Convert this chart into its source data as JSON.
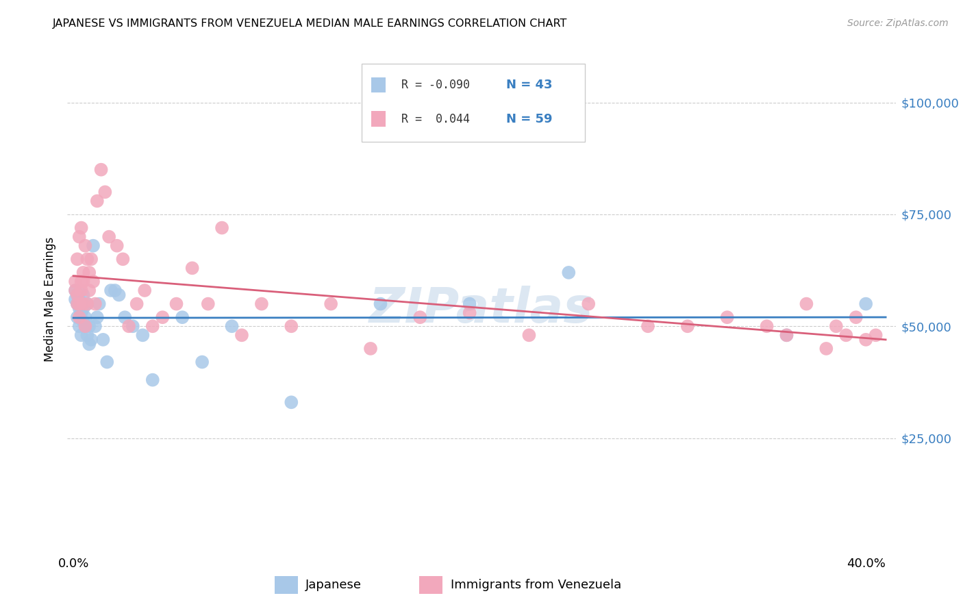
{
  "title": "JAPANESE VS IMMIGRANTS FROM VENEZUELA MEDIAN MALE EARNINGS CORRELATION CHART",
  "source": "Source: ZipAtlas.com",
  "ylabel": "Median Male Earnings",
  "ytick_labels": [
    "$25,000",
    "$50,000",
    "$75,000",
    "$100,000"
  ],
  "ytick_vals": [
    25000,
    50000,
    75000,
    100000
  ],
  "xlim": [
    -0.003,
    0.415
  ],
  "ylim": [
    0,
    112000
  ],
  "color_japanese": "#a8c8e8",
  "color_venezuela": "#f2a8bc",
  "line_color_japanese": "#3a7fc1",
  "line_color_venezuela": "#d95f7a",
  "watermark": "ZIPatlas",
  "watermark_color": "#c5d8ea",
  "japanese_x": [
    0.001,
    0.001,
    0.002,
    0.002,
    0.002,
    0.003,
    0.003,
    0.003,
    0.004,
    0.004,
    0.004,
    0.005,
    0.005,
    0.005,
    0.006,
    0.006,
    0.007,
    0.007,
    0.008,
    0.008,
    0.009,
    0.01,
    0.011,
    0.012,
    0.013,
    0.015,
    0.017,
    0.019,
    0.021,
    0.023,
    0.026,
    0.03,
    0.035,
    0.04,
    0.055,
    0.065,
    0.08,
    0.11,
    0.155,
    0.2,
    0.25,
    0.36,
    0.4
  ],
  "japanese_y": [
    56000,
    58000,
    55000,
    52000,
    57000,
    54000,
    50000,
    56000,
    53000,
    55000,
    48000,
    51000,
    57000,
    54000,
    52000,
    50000,
    55000,
    48000,
    50000,
    46000,
    47000,
    68000,
    50000,
    52000,
    55000,
    47000,
    42000,
    58000,
    58000,
    57000,
    52000,
    50000,
    48000,
    38000,
    52000,
    42000,
    50000,
    33000,
    55000,
    55000,
    62000,
    48000,
    55000
  ],
  "venezuela_x": [
    0.001,
    0.001,
    0.002,
    0.002,
    0.002,
    0.003,
    0.003,
    0.003,
    0.004,
    0.004,
    0.004,
    0.005,
    0.005,
    0.005,
    0.006,
    0.006,
    0.007,
    0.007,
    0.008,
    0.008,
    0.009,
    0.01,
    0.011,
    0.012,
    0.014,
    0.016,
    0.018,
    0.022,
    0.025,
    0.028,
    0.032,
    0.036,
    0.04,
    0.045,
    0.052,
    0.06,
    0.068,
    0.075,
    0.085,
    0.095,
    0.11,
    0.13,
    0.15,
    0.175,
    0.2,
    0.23,
    0.26,
    0.29,
    0.31,
    0.33,
    0.35,
    0.36,
    0.37,
    0.38,
    0.385,
    0.39,
    0.395,
    0.4,
    0.405
  ],
  "venezuela_y": [
    58000,
    60000,
    55000,
    57000,
    65000,
    52000,
    55000,
    70000,
    58000,
    60000,
    72000,
    55000,
    60000,
    62000,
    50000,
    68000,
    65000,
    55000,
    62000,
    58000,
    65000,
    60000,
    55000,
    78000,
    85000,
    80000,
    70000,
    68000,
    65000,
    50000,
    55000,
    58000,
    50000,
    52000,
    55000,
    63000,
    55000,
    72000,
    48000,
    55000,
    50000,
    55000,
    45000,
    52000,
    53000,
    48000,
    55000,
    50000,
    50000,
    52000,
    50000,
    48000,
    55000,
    45000,
    50000,
    48000,
    52000,
    47000,
    48000
  ],
  "legend_text": [
    [
      "R = -0.090",
      "N = 43"
    ],
    [
      "R =  0.044",
      "N = 59"
    ]
  ]
}
